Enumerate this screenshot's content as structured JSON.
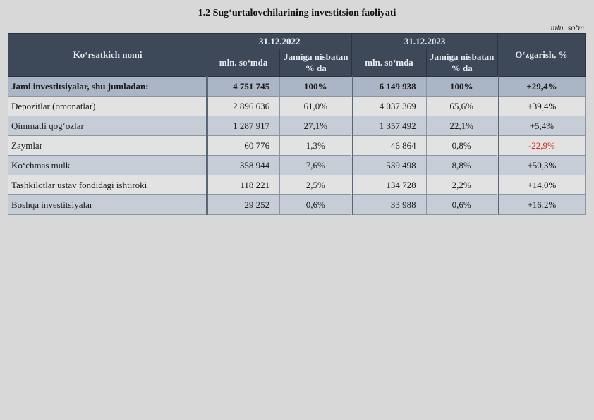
{
  "title": "1.2 Sug‘urtalovchilarining investitsion faoliyati",
  "unit": "mln. so‘m",
  "table": {
    "header": {
      "name": "Ko‘rsatkich nomi",
      "groups": [
        {
          "date": "31.12.2022",
          "amount": "mln. so‘mda",
          "share": "Jamiga nisbatan % da"
        },
        {
          "date": "31.12.2023",
          "amount": "mln. so‘mda",
          "share": "Jamiga nisbatan % da"
        }
      ],
      "change": "O‘zgarish, %"
    },
    "rows": [
      [
        "Jami investitsiyalar, shu jumladan:",
        "4 751 745",
        "100%",
        "6 149 938",
        "100%",
        "+29,4%"
      ],
      [
        "Depozitlar (omonatlar)",
        "2 896 636",
        "61,0%",
        "4 037 369",
        "65,6%",
        "+39,4%"
      ],
      [
        "Qimmatli qog‘ozlar",
        "1 287 917",
        "27,1%",
        "1 357 492",
        "22,1%",
        "+5,4%"
      ],
      [
        "Zaymlar",
        "60 776",
        "1,3%",
        "46 864",
        "0,8%",
        "-22,9%"
      ],
      [
        "Ko‘chmas mulk",
        "358 944",
        "7,6%",
        "539 498",
        "8,8%",
        "+50,3%"
      ],
      [
        "Tashkilotlar ustav fondidagi ishtiroki",
        "118 221",
        "2,5%",
        "134 728",
        "2,2%",
        "+14,0%"
      ],
      [
        "Boshqa investitsiyalar",
        "29 252",
        "0,6%",
        "33 988",
        "0,6%",
        "+16,2%"
      ]
    ]
  }
}
